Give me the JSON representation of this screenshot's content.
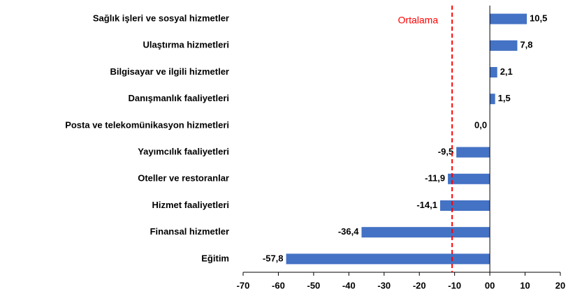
{
  "chart_data": {
    "type": "barh",
    "categories": [
      "Sağlık işleri ve sosyal hizmetler",
      "Ulaştırma hizmetleri",
      "Bilgisayar ve ilgili hizmetler",
      "Danışmanlık faaliyetleri",
      "Posta ve telekomünikasyon hizmetleri",
      "Yayımcılık faaliyetleri",
      "Oteller ve restoranlar",
      "Hizmet faaliyetleri",
      "Finansal hizmetler",
      "Eğitim"
    ],
    "values": [
      10.5,
      7.8,
      2.1,
      1.5,
      0.0,
      -9.5,
      -11.9,
      -14.1,
      -36.4,
      -57.8
    ],
    "value_labels": [
      "10,5",
      "7,8",
      "2,1",
      "1,5",
      "0,0",
      "-9,5",
      "-11,9",
      "-14,1",
      "-36,4",
      "-57,8"
    ],
    "color": "#4472c4",
    "xlim": [
      -70,
      20
    ],
    "xticks": [
      -70,
      -60,
      -50,
      -40,
      -30,
      -20,
      -10,
      {
        "value": 0,
        "label": "00"
      },
      10,
      20
    ],
    "annotations": [
      {
        "text": "Ortalama",
        "x": -10.7,
        "color": "#ff0000"
      }
    ]
  }
}
